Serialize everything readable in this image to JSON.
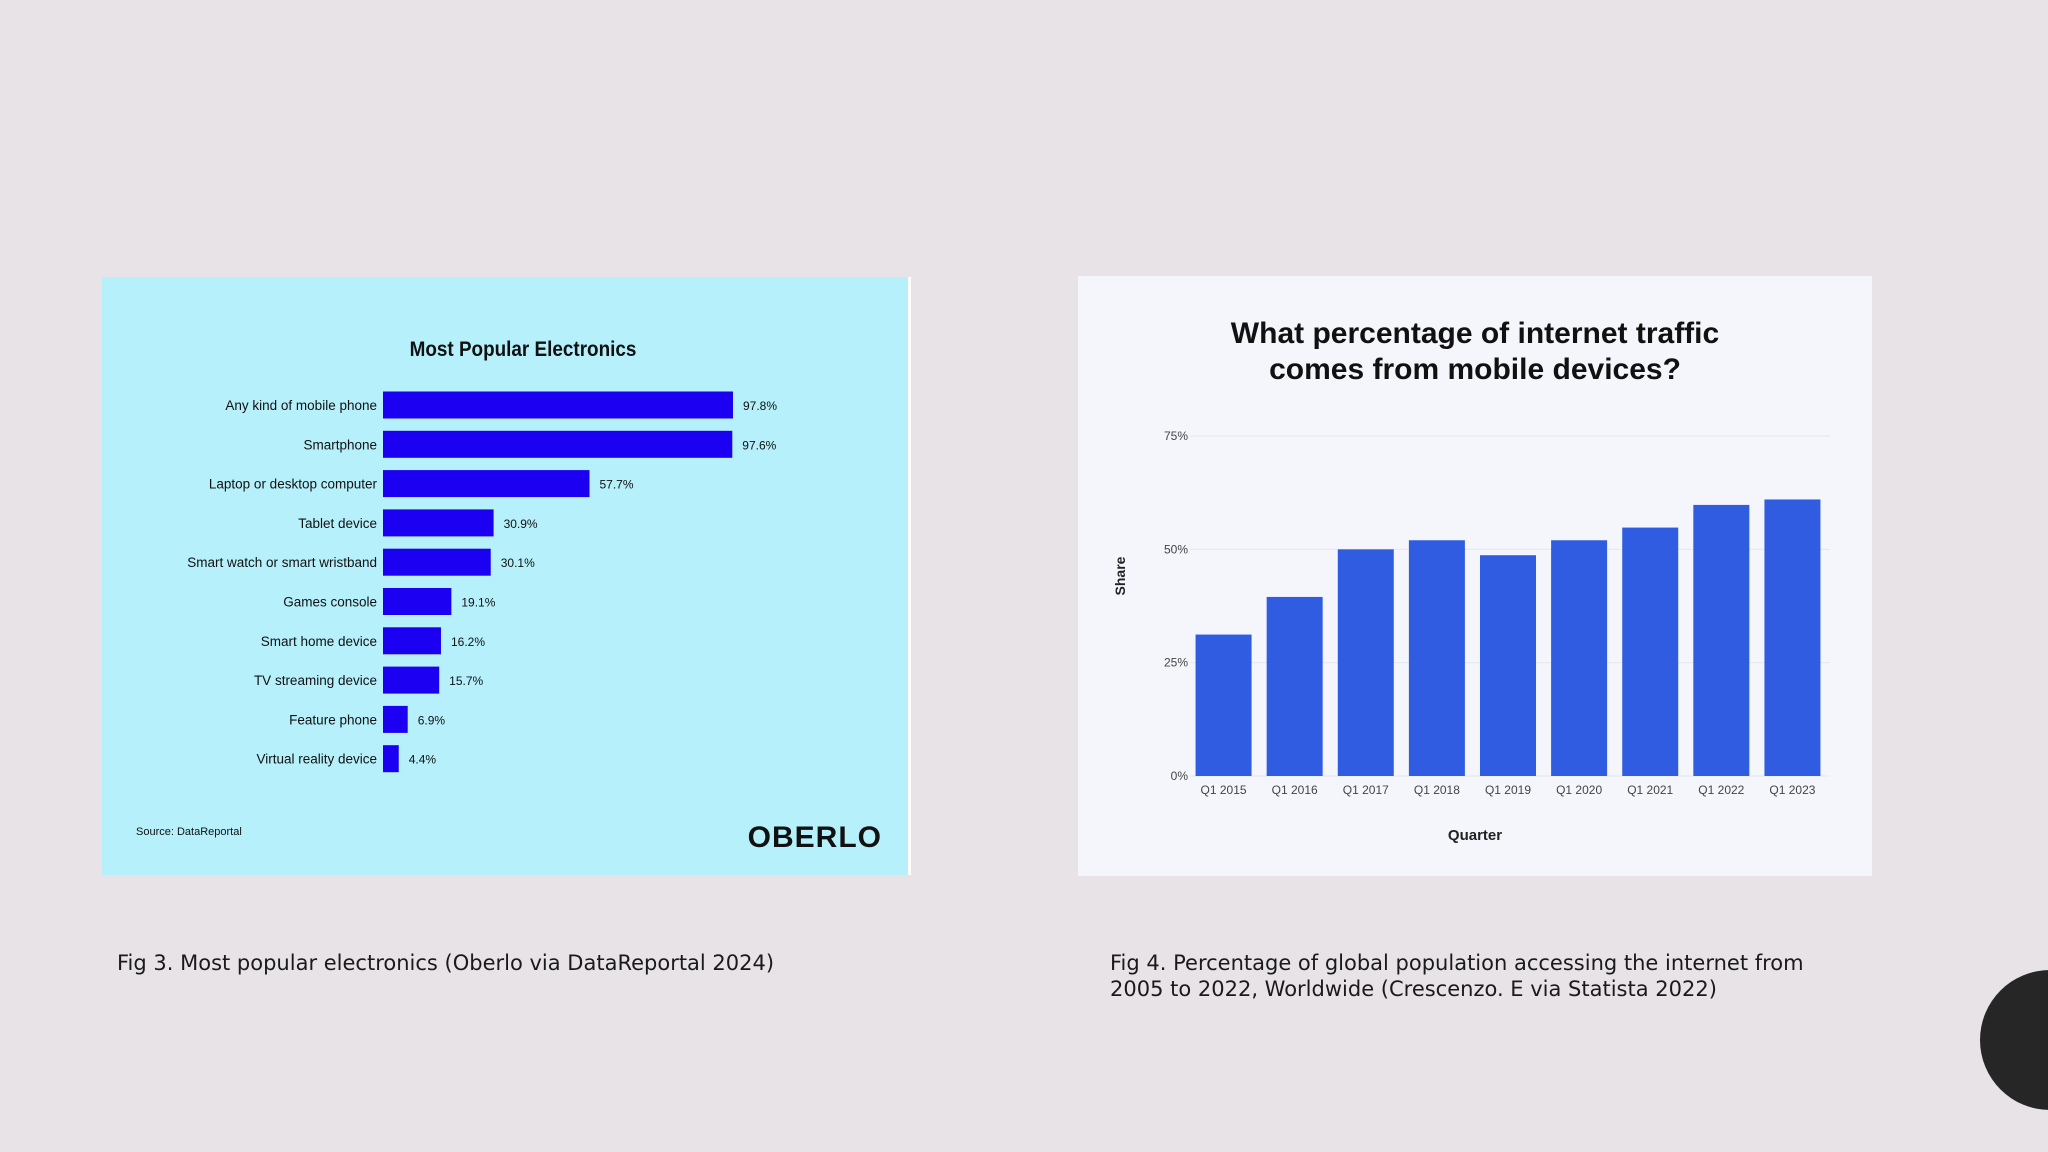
{
  "chart_data": [
    {
      "type": "bar",
      "orientation": "horizontal",
      "title": "Most Popular Electronics",
      "categories": [
        "Any kind of mobile phone",
        "Smartphone",
        "Laptop or desktop computer",
        "Tablet device",
        "Smart watch or smart wristband",
        "Games console",
        "Smart home device",
        "TV streaming device",
        "Feature phone",
        "Virtual reality device"
      ],
      "values": [
        97.8,
        97.6,
        57.7,
        30.9,
        30.1,
        19.1,
        16.2,
        15.7,
        6.9,
        4.4
      ],
      "value_labels": [
        "97.8%",
        "97.6%",
        "57.7%",
        "30.9%",
        "30.1%",
        "19.1%",
        "16.2%",
        "15.7%",
        "6.9%",
        "4.4%"
      ],
      "xlim": [
        0,
        100
      ],
      "source": "Source: DataReportal",
      "logo": "OBERLO",
      "bar_color": "#1c00f2",
      "background": "#b5f0fb"
    },
    {
      "type": "bar",
      "title_lines": [
        "What percentage of internet traffic",
        "comes from mobile devices?"
      ],
      "categories": [
        "Q1 2015",
        "Q1 2016",
        "Q1 2017",
        "Q1 2018",
        "Q1 2019",
        "Q1 2020",
        "Q1 2021",
        "Q1 2022",
        "Q1 2023"
      ],
      "values": [
        31.2,
        39.5,
        50.0,
        52.0,
        48.7,
        52.0,
        54.8,
        59.8,
        61.0
      ],
      "yticks": [
        "0%",
        "25%",
        "50%",
        "75%"
      ],
      "ylim": [
        0,
        75
      ],
      "xlabel": "Quarter",
      "ylabel": "Share",
      "bar_color": "#2f5ce0",
      "background": "#f4f6fc"
    }
  ],
  "captions": {
    "fig3": "Fig 3. Most popular electronics (Oberlo via DataReportal 2024)",
    "fig4": "Fig 4. Percentage of global population accessing the internet from 2005 to 2022, Worldwide (Crescenzo. E via Statista 2022)"
  }
}
